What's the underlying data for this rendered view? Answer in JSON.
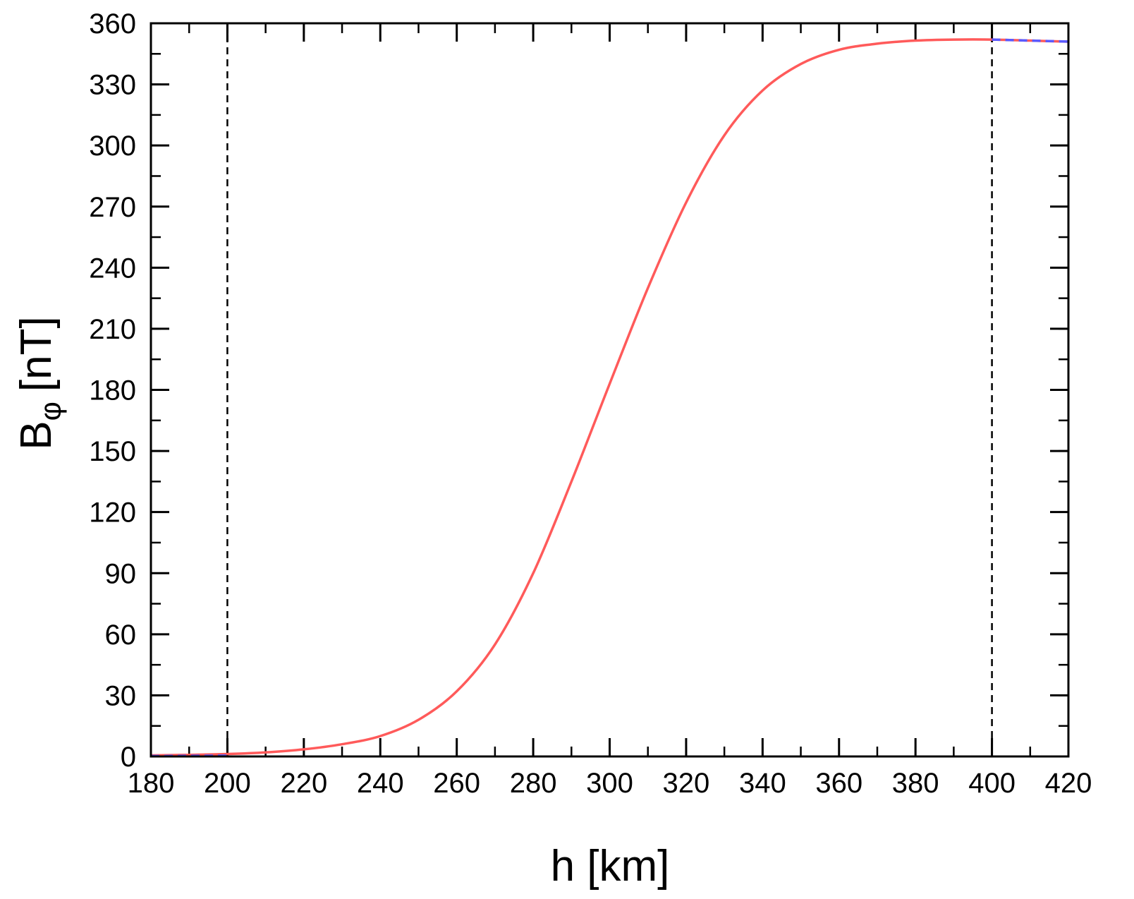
{
  "chart_data": {
    "type": "line",
    "xlabel": "h [km]",
    "ylabel": {
      "main": "B",
      "subscript": "φ",
      "unit": "[nT]"
    },
    "xlim": [
      180,
      420
    ],
    "ylim": [
      0,
      360
    ],
    "x_ticks": [
      "180",
      "200",
      "220",
      "240",
      "260",
      "280",
      "300",
      "320",
      "340",
      "360",
      "380",
      "400",
      "420"
    ],
    "y_ticks": [
      "0",
      "30",
      "60",
      "90",
      "120",
      "150",
      "180",
      "210",
      "240",
      "270",
      "300",
      "330",
      "360"
    ],
    "x_minor_step": 10,
    "y_minor_step": 15,
    "grid": false,
    "vertical_reference_lines": [
      200,
      400
    ],
    "series": [
      {
        "color": "#ff5a5a",
        "style": "solid",
        "x": [
          180,
          190,
          200,
          210,
          220,
          230,
          240,
          250,
          260,
          270,
          280,
          290,
          300,
          310,
          320,
          330,
          340,
          350,
          360,
          370,
          380,
          390,
          400,
          410,
          420
        ],
        "y": [
          0.5,
          0.8,
          1.2,
          2,
          3.5,
          6,
          10,
          18,
          32,
          55,
          90,
          135,
          183,
          230,
          272,
          305,
          327,
          340,
          347,
          350,
          351.5,
          352,
          352,
          351.5,
          351
        ]
      },
      {
        "color": "#5a5aff",
        "style": "dashed",
        "x": [
          180,
          200
        ],
        "y": [
          0.2,
          0.4
        ]
      },
      {
        "color": "#5a5aff",
        "style": "dashed",
        "x": [
          400,
          420
        ],
        "y": [
          352,
          351
        ]
      }
    ]
  }
}
